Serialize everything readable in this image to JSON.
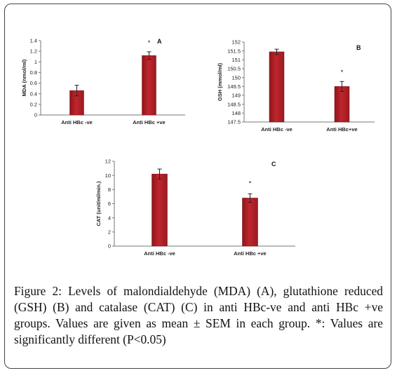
{
  "chart_data": [
    {
      "type": "bar",
      "panel_label": "A",
      "categories": [
        "Anti HBc -ve",
        "Anti HBc +ve"
      ],
      "values": [
        0.46,
        1.12
      ],
      "errors": [
        0.1,
        0.07
      ],
      "significance": [
        "",
        "*"
      ],
      "ylabel": "MDA (nmol/ml)",
      "ylim": [
        0,
        1.4
      ],
      "yticks": [
        "0",
        "0.2",
        "0.4",
        "0.6",
        "0.8",
        "1",
        "1.2",
        "1.4"
      ],
      "bar_color": "#c0262d",
      "grid": false
    },
    {
      "type": "bar",
      "panel_label": "B",
      "categories": [
        "Anti HBc -ve",
        "Anti HBc+ve"
      ],
      "values": [
        151.45,
        149.5
      ],
      "errors": [
        0.15,
        0.28
      ],
      "significance": [
        "",
        "*"
      ],
      "ylabel": "GSH (mmol/ml)",
      "ylim": [
        147.5,
        152
      ],
      "yticks": [
        "147.5",
        "148",
        "148.5",
        "149",
        "149.5",
        "150",
        "150.5",
        "151",
        "151.5",
        "152"
      ],
      "bar_color": "#c0262d",
      "grid": false
    },
    {
      "type": "bar",
      "panel_label": "C",
      "categories": [
        "Anti HBc -ve",
        "Anti HBc +ve"
      ],
      "values": [
        10.2,
        6.8
      ],
      "errors": [
        0.7,
        0.6
      ],
      "significance": [
        "",
        "*"
      ],
      "ylabel": "CAT (unit/ml/min.)",
      "ylim": [
        0,
        12
      ],
      "yticks": [
        "0",
        "2",
        "4",
        "6",
        "8",
        "10",
        "12"
      ],
      "bar_color": "#c0262d",
      "grid": false
    }
  ],
  "caption": "Figure 2: Levels of malondialdehyde (MDA) (A), glutathione reduced (GSH) (B) and catalase (CAT) (C) in anti HBc-ve and anti HBc +ve groups. Values are given as mean ± SEM in each group. *: Values are significantly different (P<0.05)"
}
